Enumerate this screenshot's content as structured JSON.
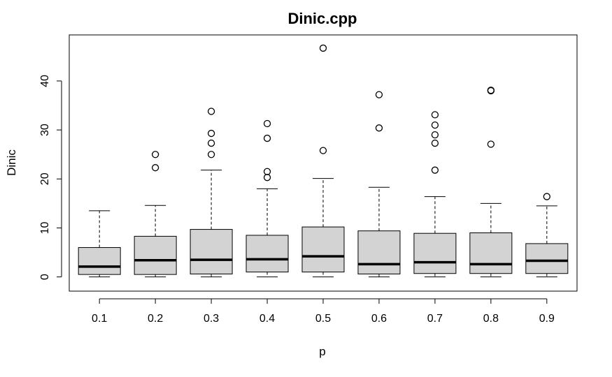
{
  "chart_data": {
    "type": "boxplot",
    "title": "Dinic.cpp",
    "xlabel": "p",
    "ylabel": "Dinic",
    "ylim": [
      -2.9,
      49.4
    ],
    "yticks": [
      0,
      10,
      20,
      30,
      40
    ],
    "grid": false,
    "legend": "none",
    "box_fill": "#d3d3d3",
    "categories": [
      "0.1",
      "0.2",
      "0.3",
      "0.4",
      "0.5",
      "0.6",
      "0.7",
      "0.8",
      "0.9"
    ],
    "boxes": [
      {
        "category": "0.1",
        "whisker_low": 0,
        "q1": 0.5,
        "median": 2.1,
        "q3": 6.0,
        "whisker_high": 13.5,
        "outliers": []
      },
      {
        "category": "0.2",
        "whisker_low": 0,
        "q1": 0.5,
        "median": 3.4,
        "q3": 8.3,
        "whisker_high": 14.6,
        "outliers": [
          22.3,
          25.0
        ]
      },
      {
        "category": "0.3",
        "whisker_low": 0,
        "q1": 0.6,
        "median": 3.5,
        "q3": 9.7,
        "whisker_high": 21.8,
        "outliers": [
          25.0,
          27.3,
          29.3,
          33.8
        ]
      },
      {
        "category": "0.4",
        "whisker_low": 0,
        "q1": 1.0,
        "median": 3.6,
        "q3": 8.5,
        "whisker_high": 18.0,
        "outliers": [
          20.3,
          21.5,
          28.3,
          31.3
        ]
      },
      {
        "category": "0.5",
        "whisker_low": 0,
        "q1": 1.0,
        "median": 4.2,
        "q3": 10.2,
        "whisker_high": 20.1,
        "outliers": [
          25.8,
          46.7
        ]
      },
      {
        "category": "0.6",
        "whisker_low": 0,
        "q1": 0.6,
        "median": 2.6,
        "q3": 9.4,
        "whisker_high": 18.3,
        "outliers": [
          30.4,
          37.2
        ]
      },
      {
        "category": "0.7",
        "whisker_low": 0,
        "q1": 0.7,
        "median": 3.0,
        "q3": 8.9,
        "whisker_high": 16.4,
        "outliers": [
          21.8,
          27.3,
          29.0,
          31.0,
          33.1
        ]
      },
      {
        "category": "0.8",
        "whisker_low": 0,
        "q1": 0.7,
        "median": 2.6,
        "q3": 9.0,
        "whisker_high": 15.0,
        "outliers": [
          27.1,
          38.0,
          38.1
        ]
      },
      {
        "category": "0.9",
        "whisker_low": 0,
        "q1": 0.7,
        "median": 3.3,
        "q3": 6.8,
        "whisker_high": 14.5,
        "outliers": [
          16.4
        ]
      }
    ]
  }
}
